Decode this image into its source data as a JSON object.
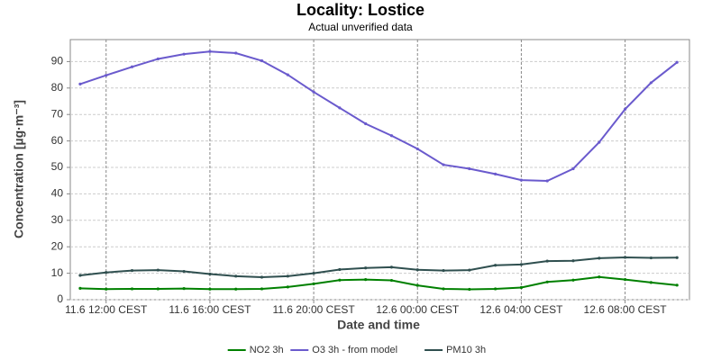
{
  "chart_data": {
    "type": "line",
    "title": "Locality: Lostice",
    "subtitle": "Actual unverified data",
    "x_label": "Date and time",
    "y_label": "Concentration [µg·m⁻³]",
    "x": [
      11,
      12,
      13,
      14,
      15,
      16,
      17,
      18,
      19,
      20,
      21,
      22,
      23,
      24,
      25,
      26,
      27,
      28,
      29,
      30,
      31,
      32,
      33,
      34
    ],
    "xlim": [
      10.62,
      34.48
    ],
    "xticks": [
      {
        "value": 12,
        "label": "11.6 12:00 CEST"
      },
      {
        "value": 16,
        "label": "11.6 16:00 CEST"
      },
      {
        "value": 20,
        "label": "11.6 20:00 CEST"
      },
      {
        "value": 24,
        "label": "12.6 00:00 CEST"
      },
      {
        "value": 28,
        "label": "12.6 04:00 CEST"
      },
      {
        "value": 32,
        "label": "12.6 08:00 CEST"
      }
    ],
    "ylim": [
      0,
      98.3
    ],
    "yticks": [
      0,
      10,
      20,
      30,
      40,
      50,
      60,
      70,
      80,
      90
    ],
    "grid": true,
    "legend": "bottom",
    "series": [
      {
        "name": "NO2 3h",
        "color": "#008000",
        "values": [
          4.3,
          4,
          4.1,
          4.1,
          4.2,
          4,
          4,
          4.1,
          4.8,
          6,
          7.4,
          7.6,
          7.3,
          5.4,
          4.1,
          3.9,
          4.1,
          4.6,
          6.7,
          7.4,
          8.6,
          7.6,
          6.5,
          5.5
        ]
      },
      {
        "name": "O3 3h - from model",
        "color": "#6a5acd",
        "values": [
          81.5,
          84.8,
          88,
          91,
          92.8,
          93.8,
          93.2,
          90.3,
          85,
          78.5,
          72.5,
          66.5,
          62,
          57,
          51,
          49.5,
          47.5,
          45.2,
          44.9,
          49.5,
          59.5,
          72,
          82,
          89.7
        ]
      },
      {
        "name": "PM10 3h",
        "color": "#2f4f4f",
        "values": [
          9.2,
          10.3,
          11,
          11.2,
          10.7,
          9.7,
          8.9,
          8.5,
          8.9,
          10,
          11.4,
          12,
          12.3,
          11.3,
          11,
          11.2,
          13,
          13.3,
          14.6,
          14.7,
          15.7,
          16,
          15.8,
          15.9
        ]
      }
    ]
  }
}
